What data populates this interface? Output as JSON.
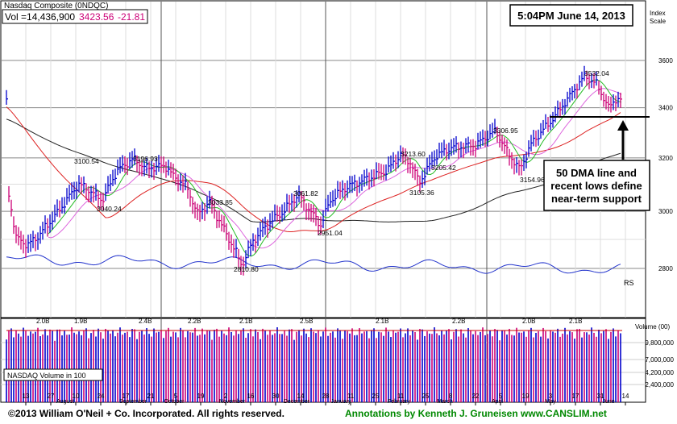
{
  "header": {
    "title": "Nasdaq Composite  (0NDQC)",
    "vol_label": "Vol =14,436,900",
    "last": "3423.56",
    "change": "-21.81",
    "timestamp": "5:04PM June 14, 2013"
  },
  "price_axis": {
    "title_line1": "Index",
    "title_line2": "Scale",
    "ticks": [
      "3600",
      "3400",
      "3200",
      "3000",
      "2800"
    ]
  },
  "volume_axis": {
    "title": "Volume (00)",
    "ticks": [
      "9,800,000",
      "7,000,000",
      "4,200,000",
      "2,400,000"
    ]
  },
  "volume_label": "NASDAQ Volume in 100",
  "rs_label": "RS",
  "annotation": {
    "line1": "50 DMA line and",
    "line2": "recent lows define",
    "line3": "near-term support"
  },
  "price_labels": [
    "3100.54",
    "3040.24",
    "3196.93",
    "3033.85",
    "2810.80",
    "3061.82",
    "2951.04",
    "3213.60",
    "3205.42",
    "3105.36",
    "3306.95",
    "3154.96",
    "3532.04"
  ],
  "volume_labels": [
    "2.0B",
    "1.9B",
    "2.4B",
    "2.2B",
    "2.1B",
    "2.5B",
    "2.1B",
    "2.2B",
    "2.0B",
    "2.1B"
  ],
  "x_axis": {
    "days": [
      "13",
      "27",
      "10",
      "24",
      "17",
      "21",
      "5",
      "19",
      "2",
      "16",
      "30",
      "14",
      "28",
      "11",
      "25",
      "11",
      "25",
      "8",
      "22",
      "5",
      "19",
      "3",
      "17",
      "31",
      "14"
    ],
    "months": [
      "August",
      "September",
      "October",
      "November",
      "December",
      "January",
      "February",
      "March",
      "April",
      "May",
      "June"
    ]
  },
  "footer": {
    "copyright": "©2013 William O'Neil + Co. Incorporated. All rights reserved.",
    "annotations": "Annotations by Kenneth J. Gruneisen www.CANSLIM.net"
  },
  "colors": {
    "price_bar": "#0000cc",
    "down_bar": "#cc0077",
    "ma50": "#dd2222",
    "ma200": "#222222",
    "ma10": "#22bb22",
    "ma21": "#dd66dd",
    "rs_line": "#2233cc",
    "footer_green": "#008800"
  },
  "chart_data": {
    "type": "line",
    "title": "Nasdaq Composite  (0NDQC)",
    "ylim": [
      2700,
      3700
    ],
    "y_scale": "log",
    "key_points": [
      {
        "label": "3100.54",
        "value": 3100.54
      },
      {
        "label": "3040.24",
        "value": 3040.24
      },
      {
        "label": "3196.93",
        "value": 3196.93
      },
      {
        "label": "3033.85",
        "value": 3033.85
      },
      {
        "label": "2810.80",
        "value": 2810.8
      },
      {
        "label": "3061.82",
        "value": 3061.82
      },
      {
        "label": "2951.04",
        "value": 2951.04
      },
      {
        "label": "3213.60",
        "value": 3213.6
      },
      {
        "label": "3205.42",
        "value": 3205.42
      },
      {
        "label": "3105.36",
        "value": 3105.36
      },
      {
        "label": "3306.95",
        "value": 3306.95
      },
      {
        "label": "3154.96",
        "value": 3154.96
      },
      {
        "label": "3532.04",
        "value": 3532.04
      }
    ],
    "support_level": 3385,
    "last_close": 3423.56,
    "volume_y_ticks": [
      9800000,
      7000000,
      4200000,
      2400000
    ]
  }
}
